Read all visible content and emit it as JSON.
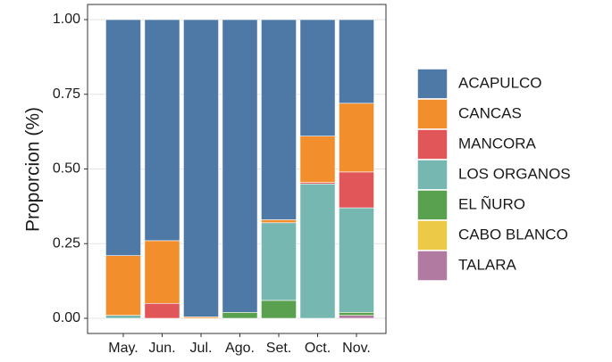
{
  "chart_data": {
    "type": "stacked_bar",
    "y_label": "Proporcion (%)",
    "categories": [
      "May.",
      "Jun.",
      "Jul.",
      "Ago.",
      "Set.",
      "Oct.",
      "Nov."
    ],
    "series": [
      {
        "name": "ACAPULCO",
        "color": "#4e79a7",
        "values": [
          0.79,
          0.74,
          0.995,
          0.98,
          0.67,
          0.39,
          0.28
        ]
      },
      {
        "name": "CANCAS",
        "color": "#f28e2b",
        "values": [
          0.2,
          0.21,
          0.005,
          0,
          0.01,
          0.155,
          0.23
        ]
      },
      {
        "name": "MANCORA",
        "color": "#e15759",
        "values": [
          0,
          0.05,
          0,
          0,
          0,
          0.005,
          0.12
        ]
      },
      {
        "name": "LOS ORGANOS",
        "color": "#76b7b2",
        "values": [
          0.01,
          0,
          0,
          0,
          0.26,
          0.45,
          0.35
        ]
      },
      {
        "name": "EL ÑURO",
        "color": "#59a14f",
        "values": [
          0,
          0,
          0,
          0.02,
          0.06,
          0,
          0.01
        ]
      },
      {
        "name": "CABO BLANCO",
        "color": "#edc948",
        "values": [
          0,
          0,
          0,
          0,
          0,
          0,
          0
        ]
      },
      {
        "name": "TALARA",
        "color": "#b07aa1",
        "values": [
          0,
          0,
          0,
          0,
          0,
          0,
          0.01
        ]
      }
    ],
    "ylim": [
      0,
      1
    ],
    "yticks": [
      {
        "value": 0,
        "label": "0.00"
      },
      {
        "value": 0.25,
        "label": "0.25"
      },
      {
        "value": 0.5,
        "label": "0.50"
      },
      {
        "value": 0.75,
        "label": "0.75"
      },
      {
        "value": 1,
        "label": "1.00"
      }
    ],
    "grid": true,
    "legend": "right"
  }
}
